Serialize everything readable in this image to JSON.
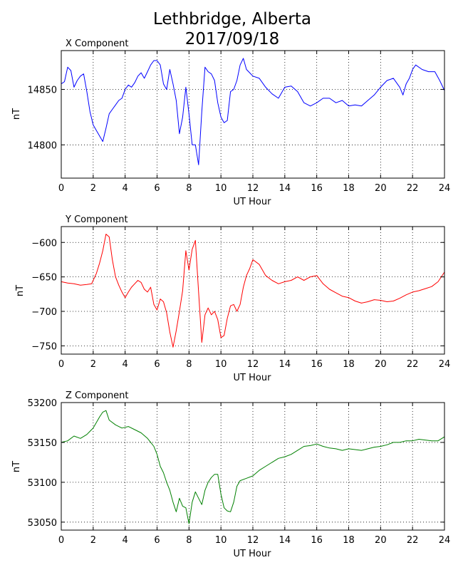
{
  "figure": {
    "title_line1": "Lethbridge, Alberta",
    "title_line2": "2017/09/18"
  },
  "chart_data": [
    {
      "type": "line",
      "title": "X Component",
      "xlabel": "UT Hour",
      "ylabel": "nT",
      "xlim": [
        0,
        24
      ],
      "ylim": [
        14770,
        14885
      ],
      "xticks": [
        0,
        2,
        4,
        6,
        8,
        10,
        12,
        14,
        16,
        18,
        20,
        22,
        24
      ],
      "yticks": [
        14800,
        14850
      ],
      "grid": true,
      "color": "#0000ff",
      "x": [
        0,
        0.2,
        0.4,
        0.6,
        0.8,
        1.0,
        1.2,
        1.4,
        1.6,
        1.8,
        2.0,
        2.2,
        2.4,
        2.6,
        2.8,
        3.0,
        3.2,
        3.4,
        3.6,
        3.8,
        4.0,
        4.2,
        4.4,
        4.6,
        4.8,
        5.0,
        5.2,
        5.4,
        5.6,
        5.8,
        6.0,
        6.2,
        6.4,
        6.6,
        6.8,
        7.0,
        7.2,
        7.4,
        7.6,
        7.8,
        8.0,
        8.2,
        8.4,
        8.6,
        8.8,
        9.0,
        9.2,
        9.4,
        9.6,
        9.8,
        10.0,
        10.2,
        10.4,
        10.6,
        10.8,
        11.0,
        11.2,
        11.4,
        11.6,
        11.8,
        12.0,
        12.4,
        12.8,
        13.2,
        13.6,
        14.0,
        14.4,
        14.8,
        15.2,
        15.6,
        16.0,
        16.4,
        16.8,
        17.2,
        17.6,
        18.0,
        18.4,
        18.8,
        19.2,
        19.6,
        20.0,
        20.4,
        20.8,
        21.2,
        21.4,
        21.6,
        21.8,
        22.0,
        22.2,
        22.6,
        23.0,
        23.4,
        23.7,
        24.0
      ],
      "y": [
        14855,
        14857,
        14870,
        14867,
        14852,
        14858,
        14862,
        14864,
        14848,
        14830,
        14818,
        14813,
        14808,
        14803,
        14815,
        14828,
        14832,
        14836,
        14840,
        14842,
        14850,
        14854,
        14852,
        14856,
        14862,
        14865,
        14860,
        14866,
        14872,
        14876,
        14876,
        14872,
        14855,
        14850,
        14868,
        14855,
        14840,
        14810,
        14825,
        14852,
        14828,
        14800,
        14800,
        14782,
        14830,
        14870,
        14866,
        14864,
        14858,
        14838,
        14825,
        14820,
        14822,
        14848,
        14850,
        14858,
        14872,
        14878,
        14868,
        14865,
        14862,
        14860,
        14852,
        14846,
        14842,
        14852,
        14853,
        14848,
        14838,
        14835,
        14838,
        14842,
        14842,
        14838,
        14840,
        14835,
        14836,
        14835,
        14840,
        14845,
        14852,
        14858,
        14860,
        14852,
        14845,
        14855,
        14860,
        14868,
        14872,
        14868,
        14866,
        14866,
        14858,
        14849
      ]
    },
    {
      "type": "line",
      "title": "Y Component",
      "xlabel": "UT Hour",
      "ylabel": "nT",
      "xlim": [
        0,
        24
      ],
      "ylim": [
        -762,
        -577
      ],
      "xticks": [
        0,
        2,
        4,
        6,
        8,
        10,
        12,
        14,
        16,
        18,
        20,
        22,
        24
      ],
      "yticks": [
        -750,
        -700,
        -650,
        -600
      ],
      "grid": true,
      "color": "#ff0000",
      "x": [
        0,
        0.4,
        0.8,
        1.2,
        1.6,
        1.9,
        2.0,
        2.2,
        2.4,
        2.6,
        2.8,
        3.0,
        3.2,
        3.4,
        3.6,
        3.8,
        4.0,
        4.2,
        4.4,
        4.6,
        4.8,
        5.0,
        5.2,
        5.4,
        5.6,
        5.8,
        6.0,
        6.2,
        6.4,
        6.6,
        6.8,
        7.0,
        7.2,
        7.4,
        7.6,
        7.8,
        8.0,
        8.2,
        8.4,
        8.6,
        8.8,
        9.0,
        9.2,
        9.4,
        9.6,
        9.8,
        10.0,
        10.2,
        10.4,
        10.6,
        10.8,
        11.0,
        11.2,
        11.4,
        11.6,
        11.8,
        12.0,
        12.4,
        12.8,
        13.2,
        13.6,
        14.0,
        14.4,
        14.8,
        15.2,
        15.6,
        16.0,
        16.4,
        16.8,
        17.2,
        17.6,
        18.0,
        18.4,
        18.8,
        19.2,
        19.6,
        20.0,
        20.4,
        20.8,
        21.2,
        21.6,
        22.0,
        22.4,
        22.8,
        23.2,
        23.6,
        24.0
      ],
      "y": [
        -657,
        -659,
        -660,
        -662,
        -661,
        -660,
        -655,
        -645,
        -630,
        -612,
        -588,
        -592,
        -625,
        -650,
        -662,
        -672,
        -680,
        -672,
        -665,
        -660,
        -655,
        -658,
        -668,
        -672,
        -665,
        -690,
        -698,
        -682,
        -686,
        -702,
        -730,
        -752,
        -728,
        -700,
        -670,
        -612,
        -640,
        -610,
        -597,
        -672,
        -745,
        -705,
        -695,
        -705,
        -700,
        -712,
        -738,
        -735,
        -710,
        -692,
        -690,
        -700,
        -690,
        -665,
        -648,
        -638,
        -625,
        -632,
        -648,
        -655,
        -660,
        -657,
        -655,
        -650,
        -655,
        -650,
        -648,
        -660,
        -668,
        -673,
        -678,
        -680,
        -685,
        -688,
        -686,
        -683,
        -684,
        -686,
        -685,
        -681,
        -676,
        -672,
        -670,
        -667,
        -664,
        -657,
        -643
      ]
    },
    {
      "type": "line",
      "title": "Z Component",
      "xlabel": "UT Hour",
      "ylabel": "nT",
      "xlim": [
        0,
        24
      ],
      "ylim": [
        53040,
        53200
      ],
      "xticks": [
        0,
        2,
        4,
        6,
        8,
        10,
        12,
        14,
        16,
        18,
        20,
        22,
        24
      ],
      "yticks": [
        53050,
        53100,
        53150,
        53200
      ],
      "grid": true,
      "color": "#008000",
      "x": [
        0,
        0.4,
        0.8,
        1.2,
        1.6,
        2.0,
        2.2,
        2.4,
        2.6,
        2.8,
        3.0,
        3.4,
        3.8,
        4.2,
        4.6,
        5.0,
        5.4,
        5.8,
        6.0,
        6.2,
        6.4,
        6.6,
        6.8,
        7.0,
        7.2,
        7.4,
        7.6,
        7.8,
        8.0,
        8.2,
        8.4,
        8.6,
        8.8,
        9.0,
        9.2,
        9.4,
        9.6,
        9.8,
        10.0,
        10.2,
        10.4,
        10.6,
        10.8,
        11.0,
        11.2,
        11.6,
        12.0,
        12.4,
        12.8,
        13.2,
        13.6,
        14.0,
        14.4,
        14.8,
        15.2,
        15.6,
        16.0,
        16.4,
        16.8,
        17.2,
        17.6,
        18.0,
        18.4,
        18.8,
        19.2,
        19.6,
        20.0,
        20.4,
        20.8,
        21.2,
        21.6,
        22.0,
        22.4,
        22.8,
        23.2,
        23.6,
        24.0
      ],
      "y": [
        53150,
        53152,
        53158,
        53155,
        53160,
        53168,
        53175,
        53182,
        53188,
        53190,
        53178,
        53172,
        53168,
        53170,
        53166,
        53162,
        53155,
        53145,
        53135,
        53120,
        53112,
        53100,
        53090,
        53075,
        53063,
        53080,
        53070,
        53068,
        53048,
        53075,
        53088,
        53080,
        53072,
        53090,
        53100,
        53106,
        53110,
        53110,
        53085,
        53068,
        53064,
        53063,
        53075,
        53095,
        53102,
        53105,
        53108,
        53115,
        53120,
        53125,
        53130,
        53132,
        53135,
        53140,
        53145,
        53146,
        53148,
        53145,
        53143,
        53142,
        53140,
        53142,
        53141,
        53140,
        53142,
        53144,
        53145,
        53147,
        53150,
        53150,
        53152,
        53152,
        53154,
        53153,
        53152,
        53152,
        53157
      ]
    }
  ]
}
